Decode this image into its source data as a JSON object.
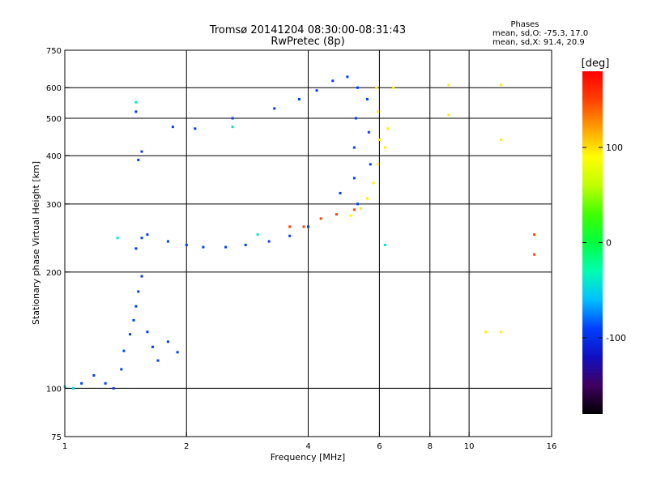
{
  "header": {
    "title": "Tromsø 20141204 08:30:00-08:31:43",
    "subtitle": "RwPretec (8p)",
    "phases_title": "Phases",
    "phases_line1": "mean, sd,O: -75.3, 17.0",
    "phases_line2": "mean, sd,X:  91.4, 20.9"
  },
  "chart_data": {
    "type": "scatter",
    "title": "Tromsø 20141204 08:30:00-08:31:43",
    "subtitle": "RwPretec (8p)",
    "xlabel": "Frequency [MHz]",
    "ylabel": "Stationary phase Virtual Height [km]",
    "x_scale": "log",
    "y_scale": "log",
    "xlim": [
      1,
      16
    ],
    "ylim": [
      75,
      750
    ],
    "x_ticks": [
      1,
      2,
      4,
      6,
      8,
      10,
      16
    ],
    "y_ticks": [
      75,
      100,
      200,
      300,
      400,
      500,
      600,
      750
    ],
    "x_grid": [
      2,
      4,
      6,
      8,
      10
    ],
    "y_grid": [
      100,
      200,
      300,
      400,
      500,
      600
    ],
    "colorbar": {
      "label": "[deg]",
      "range": [
        -180,
        180
      ],
      "ticks": [
        -100,
        0,
        100
      ],
      "colors": [
        "#000000",
        "#400060",
        "#1010c0",
        "#0040ff",
        "#00c0ff",
        "#00ffb0",
        "#00ff40",
        "#40ff00",
        "#c0ff00",
        "#ffff00",
        "#ffa000",
        "#ff4000",
        "#ff0000"
      ]
    },
    "series": [
      {
        "phase": -92,
        "points": [
          [
            1.05,
            100
          ],
          [
            1.1,
            103
          ],
          [
            1.18,
            108
          ],
          [
            1.26,
            103
          ],
          [
            1.32,
            100
          ],
          [
            1.38,
            112
          ],
          [
            1.4,
            125
          ],
          [
            1.45,
            138
          ],
          [
            1.48,
            150
          ],
          [
            1.5,
            163
          ],
          [
            1.52,
            178
          ],
          [
            1.55,
            195
          ],
          [
            1.6,
            140
          ],
          [
            1.65,
            128
          ],
          [
            1.7,
            118
          ],
          [
            1.8,
            132
          ],
          [
            1.9,
            124
          ],
          [
            1.5,
            230
          ],
          [
            1.55,
            245
          ],
          [
            1.6,
            250
          ],
          [
            1.8,
            240
          ],
          [
            2.0,
            235
          ],
          [
            2.2,
            232
          ],
          [
            2.5,
            232
          ],
          [
            2.8,
            235
          ],
          [
            3.2,
            240
          ],
          [
            3.6,
            248
          ],
          [
            4.0,
            262
          ],
          [
            1.52,
            390
          ],
          [
            1.55,
            410
          ],
          [
            1.5,
            520
          ],
          [
            1.85,
            475
          ],
          [
            2.1,
            470
          ],
          [
            2.6,
            500
          ],
          [
            3.3,
            530
          ],
          [
            3.8,
            560
          ],
          [
            4.2,
            590
          ],
          [
            4.6,
            625
          ],
          [
            5.0,
            640
          ],
          [
            5.3,
            600
          ],
          [
            5.25,
            500
          ],
          [
            5.2,
            420
          ],
          [
            5.2,
            350
          ],
          [
            5.3,
            300
          ],
          [
            4.8,
            320
          ],
          [
            5.6,
            560
          ],
          [
            5.65,
            460
          ],
          [
            5.7,
            380
          ]
        ]
      },
      {
        "phase": 95,
        "points": [
          [
            5.9,
            600
          ],
          [
            5.95,
            520
          ],
          [
            6.0,
            440
          ],
          [
            5.95,
            380
          ],
          [
            5.8,
            340
          ],
          [
            5.6,
            310
          ],
          [
            5.4,
            292
          ],
          [
            5.1,
            280
          ],
          [
            6.2,
            420
          ],
          [
            6.3,
            470
          ],
          [
            6.5,
            600
          ],
          [
            8.9,
            610
          ],
          [
            8.9,
            510
          ],
          [
            12,
            610
          ],
          [
            12,
            440
          ],
          [
            11,
            140
          ],
          [
            12,
            140
          ]
        ]
      },
      {
        "phase": 150,
        "points": [
          [
            3.9,
            262
          ],
          [
            4.3,
            275
          ],
          [
            4.7,
            282
          ],
          [
            5.2,
            290
          ],
          [
            3.6,
            262
          ],
          [
            14.5,
            250
          ],
          [
            14.5,
            222
          ]
        ]
      },
      {
        "phase": -40,
        "points": [
          [
            1.0,
            101
          ],
          [
            1.05,
            100
          ],
          [
            1.35,
            245
          ],
          [
            1.5,
            550
          ],
          [
            2.6,
            475
          ],
          [
            3.0,
            250
          ],
          [
            6.2,
            235
          ]
        ]
      }
    ]
  }
}
